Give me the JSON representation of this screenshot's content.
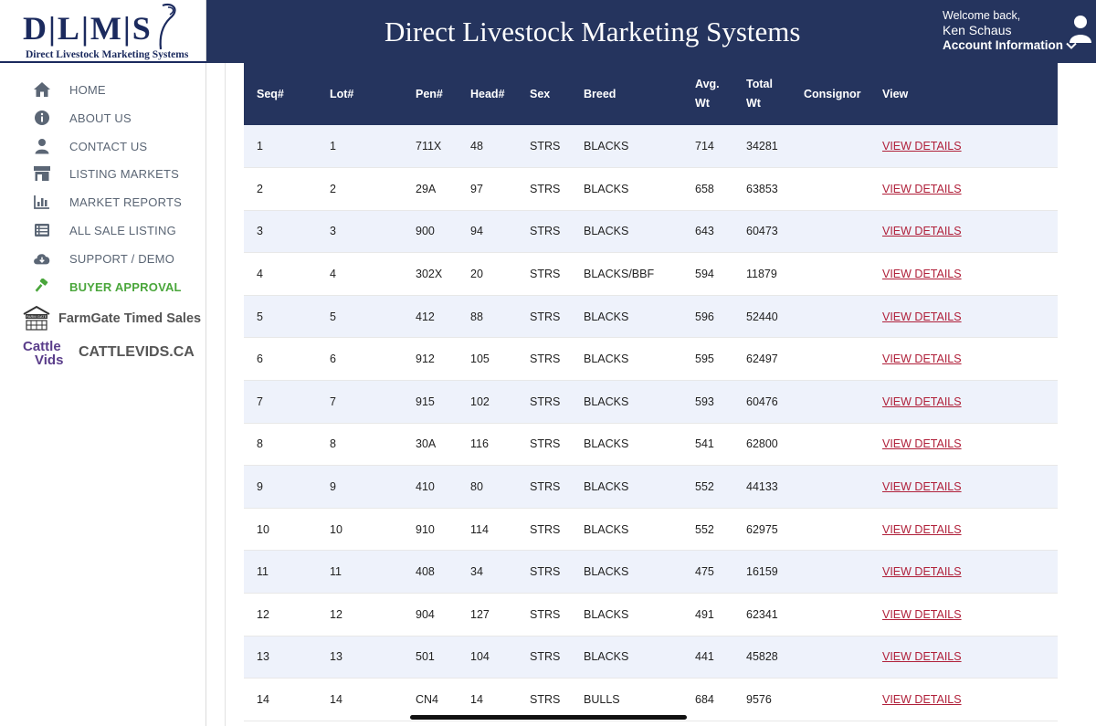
{
  "logo": {
    "letters": "D|L|M|S",
    "subtitle": "Direct Livestock Marketing Systems"
  },
  "header": {
    "title": "Direct Livestock Marketing Systems",
    "welcome": "Welcome back,",
    "user_name": "Ken Schaus",
    "account_label": "Account Information",
    "bg_color": "#25345e"
  },
  "sidebar": {
    "items": [
      {
        "label": "HOME",
        "icon": "home-icon"
      },
      {
        "label": "ABOUT US",
        "icon": "info-icon"
      },
      {
        "label": "CONTACT US",
        "icon": "person-icon"
      },
      {
        "label": "LISTING MARKETS",
        "icon": "store-icon"
      },
      {
        "label": "MARKET REPORTS",
        "icon": "bar-chart-icon"
      },
      {
        "label": "ALL SALE LISTING",
        "icon": "list-icon"
      },
      {
        "label": "SUPPORT / DEMO",
        "icon": "cloud-download-icon"
      },
      {
        "label": "BUYER APPROVAL",
        "icon": "gavel-icon",
        "active": true
      }
    ],
    "farmgate": {
      "label": "FarmGate Timed Sales",
      "logo_text": "FARM GATE"
    },
    "cattlevids": {
      "label": "CATTLEVIDS.CA",
      "logo_text_1": "Cattle",
      "logo_text_2": "Vids"
    },
    "active_color": "#4aa63b"
  },
  "table": {
    "headers": {
      "seq": "Seq#",
      "lot": "Lot#",
      "pen": "Pen#",
      "head": "Head#",
      "sex": "Sex",
      "breed": "Breed",
      "avg_wt_1": "Avg.",
      "avg_wt_2": "Wt",
      "total_wt_1": "Total",
      "total_wt_2": "Wt",
      "consignor": "Consignor",
      "view": "View"
    },
    "rows": [
      {
        "seq": "1",
        "lot": "1",
        "pen": "711X",
        "head": "48",
        "sex": "STRS",
        "breed": "BLACKS",
        "avg_wt": "714",
        "total_wt": "34281",
        "consignor": "",
        "view": "VIEW DETAILS"
      },
      {
        "seq": "2",
        "lot": "2",
        "pen": "29A",
        "head": "97",
        "sex": "STRS",
        "breed": "BLACKS",
        "avg_wt": "658",
        "total_wt": "63853",
        "consignor": "",
        "view": "VIEW DETAILS"
      },
      {
        "seq": "3",
        "lot": "3",
        "pen": "900",
        "head": "94",
        "sex": "STRS",
        "breed": "BLACKS",
        "avg_wt": "643",
        "total_wt": "60473",
        "consignor": "",
        "view": "VIEW DETAILS"
      },
      {
        "seq": "4",
        "lot": "4",
        "pen": "302X",
        "head": "20",
        "sex": "STRS",
        "breed": "BLACKS/BBF",
        "avg_wt": "594",
        "total_wt": "11879",
        "consignor": "",
        "view": "VIEW DETAILS"
      },
      {
        "seq": "5",
        "lot": "5",
        "pen": "412",
        "head": "88",
        "sex": "STRS",
        "breed": "BLACKS",
        "avg_wt": "596",
        "total_wt": "52440",
        "consignor": "",
        "view": "VIEW DETAILS"
      },
      {
        "seq": "6",
        "lot": "6",
        "pen": "912",
        "head": "105",
        "sex": "STRS",
        "breed": "BLACKS",
        "avg_wt": "595",
        "total_wt": "62497",
        "consignor": "",
        "view": "VIEW DETAILS"
      },
      {
        "seq": "7",
        "lot": "7",
        "pen": "915",
        "head": "102",
        "sex": "STRS",
        "breed": "BLACKS",
        "avg_wt": "593",
        "total_wt": "60476",
        "consignor": "",
        "view": "VIEW DETAILS"
      },
      {
        "seq": "8",
        "lot": "8",
        "pen": "30A",
        "head": "116",
        "sex": "STRS",
        "breed": "BLACKS",
        "avg_wt": "541",
        "total_wt": "62800",
        "consignor": "",
        "view": "VIEW DETAILS"
      },
      {
        "seq": "9",
        "lot": "9",
        "pen": "410",
        "head": "80",
        "sex": "STRS",
        "breed": "BLACKS",
        "avg_wt": "552",
        "total_wt": "44133",
        "consignor": "",
        "view": "VIEW DETAILS"
      },
      {
        "seq": "10",
        "lot": "10",
        "pen": "910",
        "head": "114",
        "sex": "STRS",
        "breed": "BLACKS",
        "avg_wt": "552",
        "total_wt": "62975",
        "consignor": "",
        "view": "VIEW DETAILS"
      },
      {
        "seq": "11",
        "lot": "11",
        "pen": "408",
        "head": "34",
        "sex": "STRS",
        "breed": "BLACKS",
        "avg_wt": "475",
        "total_wt": "16159",
        "consignor": "",
        "view": "VIEW DETAILS"
      },
      {
        "seq": "12",
        "lot": "12",
        "pen": "904",
        "head": "127",
        "sex": "STRS",
        "breed": "BLACKS",
        "avg_wt": "491",
        "total_wt": "62341",
        "consignor": "",
        "view": "VIEW DETAILS"
      },
      {
        "seq": "13",
        "lot": "13",
        "pen": "501",
        "head": "104",
        "sex": "STRS",
        "breed": "BLACKS",
        "avg_wt": "441",
        "total_wt": "45828",
        "consignor": "",
        "view": "VIEW DETAILS"
      },
      {
        "seq": "14",
        "lot": "14",
        "pen": "CN4",
        "head": "14",
        "sex": "STRS",
        "breed": "BULLS",
        "avg_wt": "684",
        "total_wt": "9576",
        "consignor": "",
        "view": "VIEW DETAILS"
      }
    ],
    "link_color": "#b0203a"
  }
}
